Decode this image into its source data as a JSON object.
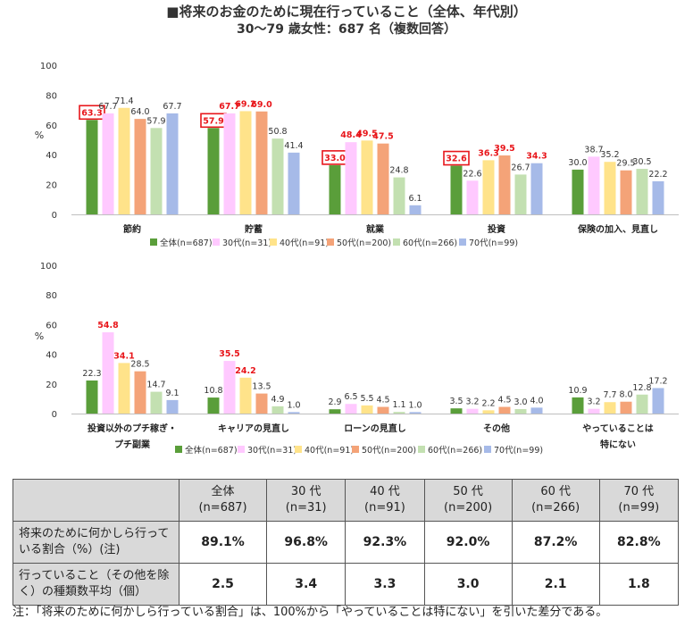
{
  "title_line1": "■将来のお金のために現在行っていること（全体、年代別）",
  "title_line2": "30〜79 歳女性：687 名（複数回答）",
  "series_colors": [
    "#5a9e3a",
    "#ffc9ff",
    "#ffe38a",
    "#f4a378",
    "#c3e0b1",
    "#a6bae8"
  ],
  "highlight_color": "#e8161b",
  "chart_data": [
    {
      "type": "bar",
      "ylabel": "%",
      "ylim": [
        0,
        100
      ],
      "yticks": [
        "0",
        "20",
        "40",
        "60",
        "80",
        "100"
      ],
      "categories": [
        "節約",
        "貯蓄",
        "就業",
        "投資",
        "保険の加入、見直し"
      ],
      "series": [
        {
          "name": "全体(n=687)",
          "values": [
            63.3,
            57.9,
            33.0,
            32.6,
            30.0
          ]
        },
        {
          "name": "30代(n=31)",
          "values": [
            67.7,
            67.7,
            48.4,
            22.6,
            38.7
          ]
        },
        {
          "name": "40代(n=91)",
          "values": [
            71.4,
            69.2,
            49.5,
            36.3,
            35.2
          ]
        },
        {
          "name": "50代(n=200)",
          "values": [
            64.0,
            69.0,
            47.5,
            39.5,
            29.5
          ]
        },
        {
          "name": "60代(n=266)",
          "values": [
            57.9,
            50.8,
            24.8,
            26.7,
            30.5
          ]
        },
        {
          "name": "70代(n=99)",
          "values": [
            67.7,
            41.4,
            6.1,
            34.3,
            22.2
          ]
        }
      ],
      "labels": [
        [
          "63.3",
          "67.7",
          "71.4",
          "64.0",
          "57.9",
          "67.7"
        ],
        [
          "57.9",
          "67.7",
          "69.2",
          "69.0",
          "50.8",
          "41.4"
        ],
        [
          "33.0",
          "48.4",
          "49.5",
          "47.5",
          "24.8",
          "6.1"
        ],
        [
          "32.6",
          "22.6",
          "36.3",
          "39.5",
          "26.7",
          "34.3"
        ],
        [
          "30.0",
          "38.7",
          "35.2",
          "29.5",
          "30.5",
          "22.2"
        ]
      ],
      "red_labels": [
        [
          false,
          false,
          false,
          false,
          false,
          false
        ],
        [
          false,
          true,
          true,
          true,
          false,
          false
        ],
        [
          false,
          true,
          true,
          true,
          false,
          false
        ],
        [
          false,
          false,
          true,
          true,
          false,
          true
        ],
        [
          false,
          false,
          false,
          false,
          false,
          false
        ]
      ],
      "boxed_labels": [
        true,
        true,
        true,
        true,
        false
      ],
      "legend_position": "bottom"
    },
    {
      "type": "bar",
      "ylabel": "%",
      "ylim": [
        0,
        100
      ],
      "yticks": [
        "0",
        "20",
        "40",
        "60",
        "80",
        "100"
      ],
      "categories": [
        "投資以外のプチ稼ぎ・\nプチ副業",
        "キャリアの見直し",
        "ローンの見直し",
        "その他",
        "やっていることは\n特にない"
      ],
      "series": [
        {
          "name": "全体(n=687)",
          "values": [
            22.3,
            10.8,
            2.9,
            3.5,
            10.9
          ]
        },
        {
          "name": "30代(n=31)",
          "values": [
            54.8,
            35.5,
            6.5,
            3.2,
            3.2
          ]
        },
        {
          "name": "40代(n=91)",
          "values": [
            34.1,
            24.2,
            5.5,
            2.2,
            7.7
          ]
        },
        {
          "name": "50代(n=200)",
          "values": [
            28.5,
            13.5,
            4.5,
            4.5,
            8.0
          ]
        },
        {
          "name": "60代(n=266)",
          "values": [
            14.7,
            4.9,
            1.1,
            3.0,
            12.8
          ]
        },
        {
          "name": "70代(n=99)",
          "values": [
            9.1,
            1.0,
            1.0,
            4.0,
            17.2
          ]
        }
      ],
      "labels": [
        [
          "22.3",
          "54.8",
          "34.1",
          "28.5",
          "14.7",
          "9.1"
        ],
        [
          "10.8",
          "35.5",
          "24.2",
          "13.5",
          "4.9",
          "1.0"
        ],
        [
          "2.9",
          "6.5",
          "5.5",
          "4.5",
          "1.1",
          "1.0"
        ],
        [
          "3.5",
          "3.2",
          "2.2",
          "4.5",
          "3.0",
          "4.0"
        ],
        [
          "10.9",
          "3.2",
          "7.7",
          "8.0",
          "12.8",
          "17.2"
        ]
      ],
      "red_labels": [
        [
          false,
          true,
          true,
          false,
          false,
          false
        ],
        [
          false,
          true,
          true,
          false,
          false,
          false
        ],
        [
          false,
          false,
          false,
          false,
          false,
          false
        ],
        [
          false,
          false,
          false,
          false,
          false,
          false
        ],
        [
          false,
          false,
          false,
          false,
          false,
          false
        ]
      ],
      "boxed_labels": [
        false,
        false,
        false,
        false,
        false
      ],
      "legend_position": "bottom"
    }
  ],
  "table": {
    "columns": [
      {
        "name": "全体",
        "n": "(n=687)"
      },
      {
        "name": "30 代",
        "n": "(n=31)"
      },
      {
        "name": "40 代",
        "n": "(n=91)"
      },
      {
        "name": "50 代",
        "n": "(n=200)"
      },
      {
        "name": "60 代",
        "n": "(n=266)"
      },
      {
        "name": "70 代",
        "n": "(n=99)"
      }
    ],
    "rows": [
      {
        "label": "将来のために何かしら行っている割合（%）(注)",
        "values": [
          "89.1%",
          "96.8%",
          "92.3%",
          "92.0%",
          "87.2%",
          "82.8%"
        ]
      },
      {
        "label": "行っていること（その他を除く）の種類数平均（個）",
        "values": [
          "2.5",
          "3.4",
          "3.3",
          "3.0",
          "2.1",
          "1.8"
        ]
      }
    ]
  },
  "note": "注：「将来のために何かしら行っている割合」は、100%から「やっていることは特にない」を引いた差分である。"
}
